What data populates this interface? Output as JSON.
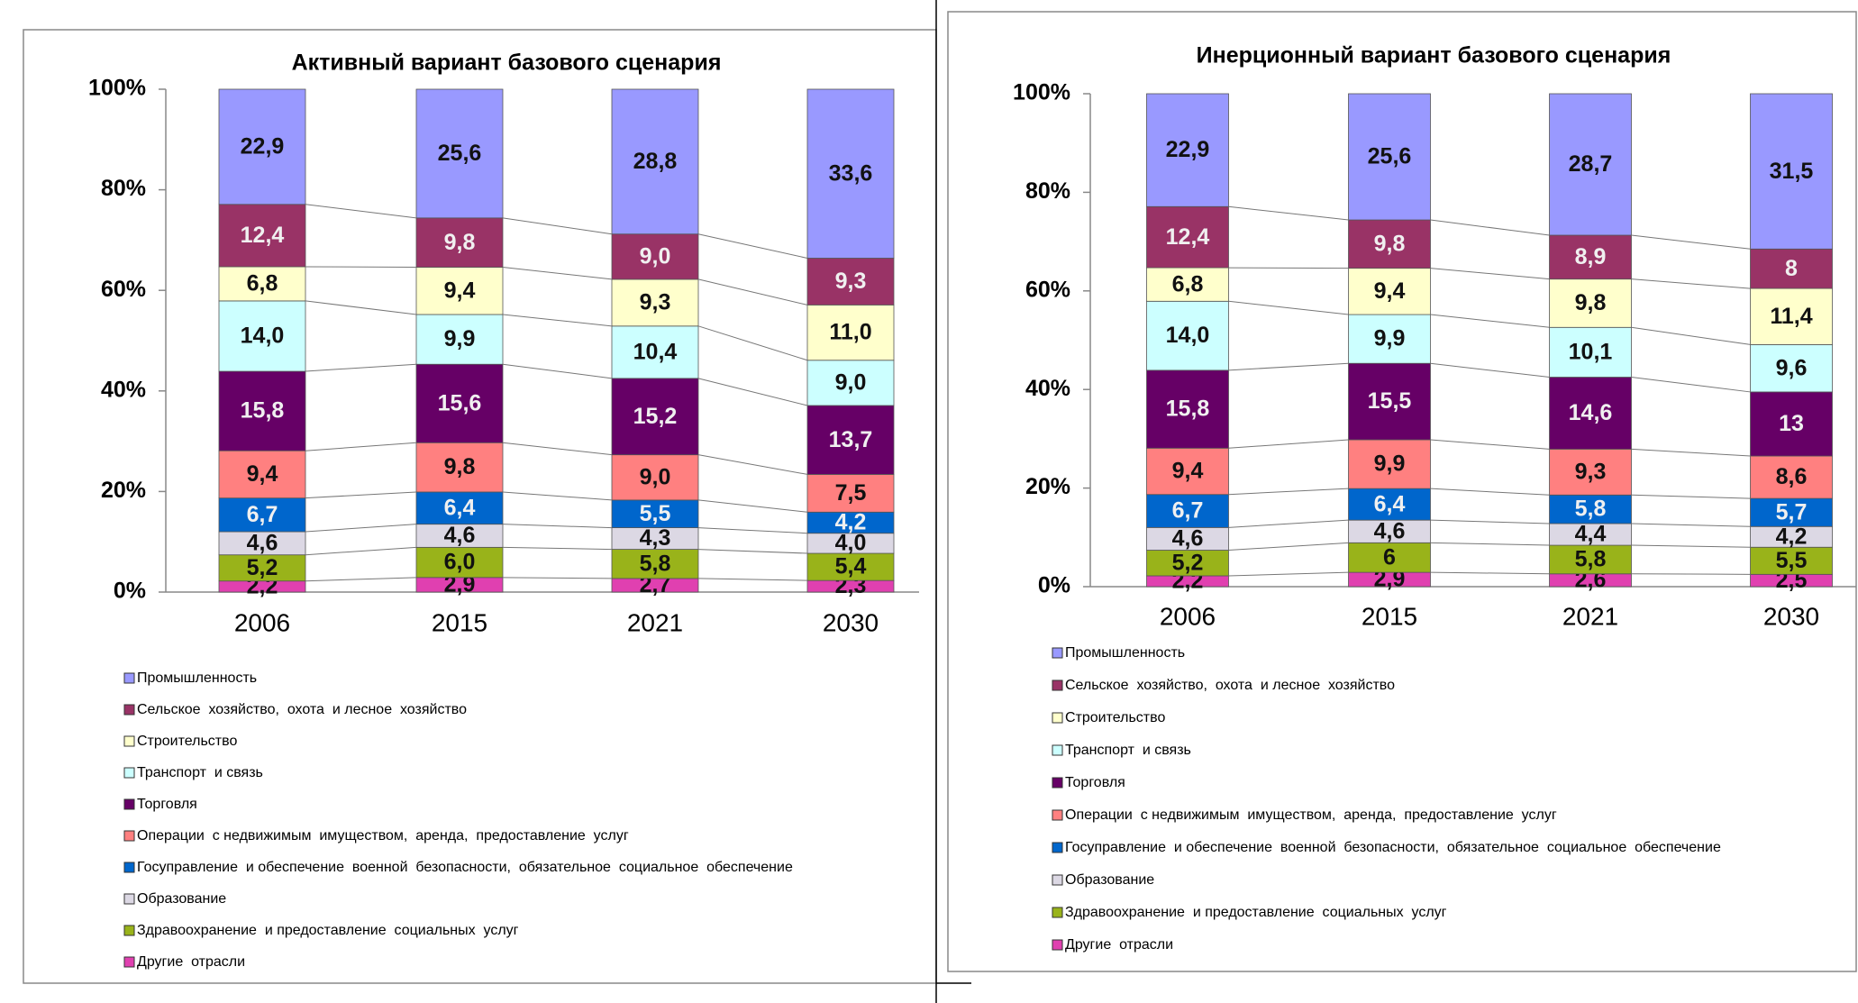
{
  "chart_data": [
    {
      "type": "bar",
      "title": "Активный вариант базового сценария",
      "categories": [
        "2006",
        "2015",
        "2021",
        "2030"
      ],
      "ylim": [
        0,
        100
      ],
      "yticks": [
        {
          "value": 0,
          "label": "0%"
        },
        {
          "value": 20,
          "label": "20%"
        },
        {
          "value": 40,
          "label": "40%"
        },
        {
          "value": 60,
          "label": "60%"
        },
        {
          "value": 80,
          "label": "80%"
        },
        {
          "value": 100,
          "label": "100%"
        }
      ],
      "series": [
        {
          "name": "Промышленность",
          "color": "#9999ff",
          "values": [
            22.9,
            25.6,
            28.8,
            33.6
          ],
          "value_labels": [
            "22,9",
            "25,6",
            "28,8",
            "33,6"
          ]
        },
        {
          "name": "Сельское  хозяйство,  охота  и лесное  хозяйство",
          "color": "#993366",
          "values": [
            12.4,
            9.8,
            9.0,
            9.3
          ],
          "value_labels": [
            "12,4",
            "9,8",
            "9,0",
            "9,3"
          ]
        },
        {
          "name": "Строительство",
          "color": "#ffffcc",
          "values": [
            6.8,
            9.4,
            9.3,
            11.0
          ],
          "value_labels": [
            "6,8",
            "9,4",
            "9,3",
            "11,0"
          ]
        },
        {
          "name": "Транспорт  и связь",
          "color": "#ccffff",
          "values": [
            14.0,
            9.9,
            10.4,
            9.0
          ],
          "value_labels": [
            "14,0",
            "9,9",
            "10,4",
            "9,0"
          ]
        },
        {
          "name": "Торговля",
          "color": "#660066",
          "values": [
            15.8,
            15.6,
            15.2,
            13.7
          ],
          "value_labels": [
            "15,8",
            "15,6",
            "15,2",
            "13,7"
          ]
        },
        {
          "name": "Операции  с недвижимым  имуществом,  аренда,  предоставление  услуг",
          "color": "#ff8080",
          "values": [
            9.4,
            9.8,
            9.0,
            7.5
          ],
          "value_labels": [
            "9,4",
            "9,8",
            "9,0",
            "7,5"
          ]
        },
        {
          "name": "Госуправление  и обеспечение  военной  безопасности,  обязательное  социальное  обеспечение",
          "color": "#0066cc",
          "values": [
            6.7,
            6.4,
            5.5,
            4.2
          ],
          "value_labels": [
            "6,7",
            "6,4",
            "5,5",
            "4,2"
          ]
        },
        {
          "name": "Образование",
          "color": "#dcd8e4",
          "values": [
            4.6,
            4.6,
            4.3,
            4.0
          ],
          "value_labels": [
            "4,6",
            "4,6",
            "4,3",
            "4,0"
          ]
        },
        {
          "name": "Здравоохранение  и предоставление  социальных  услуг",
          "color": "#99b31a",
          "values": [
            5.2,
            6.0,
            5.8,
            5.4
          ],
          "value_labels": [
            "5,2",
            "6,0",
            "5,8",
            "5,4"
          ]
        },
        {
          "name": "Другие  отрасли",
          "color": "#e040b0",
          "values": [
            2.2,
            2.9,
            2.7,
            2.3
          ],
          "value_labels": [
            "2,2",
            "2,9",
            "2,7",
            "2,3"
          ]
        }
      ]
    },
    {
      "type": "bar",
      "title": "Инерционный вариант базового сценария",
      "categories": [
        "2006",
        "2015",
        "2021",
        "2030"
      ],
      "ylim": [
        0,
        100
      ],
      "yticks": [
        {
          "value": 0,
          "label": "0%"
        },
        {
          "value": 20,
          "label": "20%"
        },
        {
          "value": 40,
          "label": "40%"
        },
        {
          "value": 60,
          "label": "60%"
        },
        {
          "value": 80,
          "label": "80%"
        },
        {
          "value": 100,
          "label": "100%"
        }
      ],
      "series": [
        {
          "name": "Промышленность",
          "color": "#9999ff",
          "values": [
            22.9,
            25.6,
            28.7,
            31.5
          ],
          "value_labels": [
            "22,9",
            "25,6",
            "28,7",
            "31,5"
          ]
        },
        {
          "name": "Сельское  хозяйство,  охота  и лесное  хозяйство",
          "color": "#993366",
          "values": [
            12.4,
            9.8,
            8.9,
            8
          ],
          "value_labels": [
            "12,4",
            "9,8",
            "8,9",
            "8"
          ]
        },
        {
          "name": "Строительство",
          "color": "#ffffcc",
          "values": [
            6.8,
            9.4,
            9.8,
            11.4
          ],
          "value_labels": [
            "6,8",
            "9,4",
            "9,8",
            "11,4"
          ]
        },
        {
          "name": "Транспорт  и связь",
          "color": "#ccffff",
          "values": [
            14.0,
            9.9,
            10.1,
            9.6
          ],
          "value_labels": [
            "14,0",
            "9,9",
            "10,1",
            "9,6"
          ]
        },
        {
          "name": "Торговля",
          "color": "#660066",
          "values": [
            15.8,
            15.5,
            14.6,
            13
          ],
          "value_labels": [
            "15,8",
            "15,5",
            "14,6",
            "13"
          ]
        },
        {
          "name": "Операции  с недвижимым  имуществом,  аренда,  предоставление  услуг",
          "color": "#ff8080",
          "values": [
            9.4,
            9.9,
            9.3,
            8.6
          ],
          "value_labels": [
            "9,4",
            "9,9",
            "9,3",
            "8,6"
          ]
        },
        {
          "name": "Госуправление  и обеспечение  военной  безопасности,  обязательное  социальное  обеспечение",
          "color": "#0066cc",
          "values": [
            6.7,
            6.4,
            5.8,
            5.7
          ],
          "value_labels": [
            "6,7",
            "6,4",
            "5,8",
            "5,7"
          ]
        },
        {
          "name": "Образование",
          "color": "#dcd8e4",
          "values": [
            4.6,
            4.6,
            4.4,
            4.2
          ],
          "value_labels": [
            "4,6",
            "4,6",
            "4,4",
            "4,2"
          ]
        },
        {
          "name": "Здравоохранение  и предоставление  социальных  услуг",
          "color": "#99b31a",
          "values": [
            5.2,
            6,
            5.8,
            5.5
          ],
          "value_labels": [
            "5,2",
            "6",
            "5,8",
            "5,5"
          ]
        },
        {
          "name": "Другие  отрасли",
          "color": "#e040b0",
          "values": [
            2.2,
            2.9,
            2.6,
            2.5
          ],
          "value_labels": [
            "2,2",
            "2,9",
            "2,6",
            "2,5"
          ]
        }
      ]
    }
  ]
}
